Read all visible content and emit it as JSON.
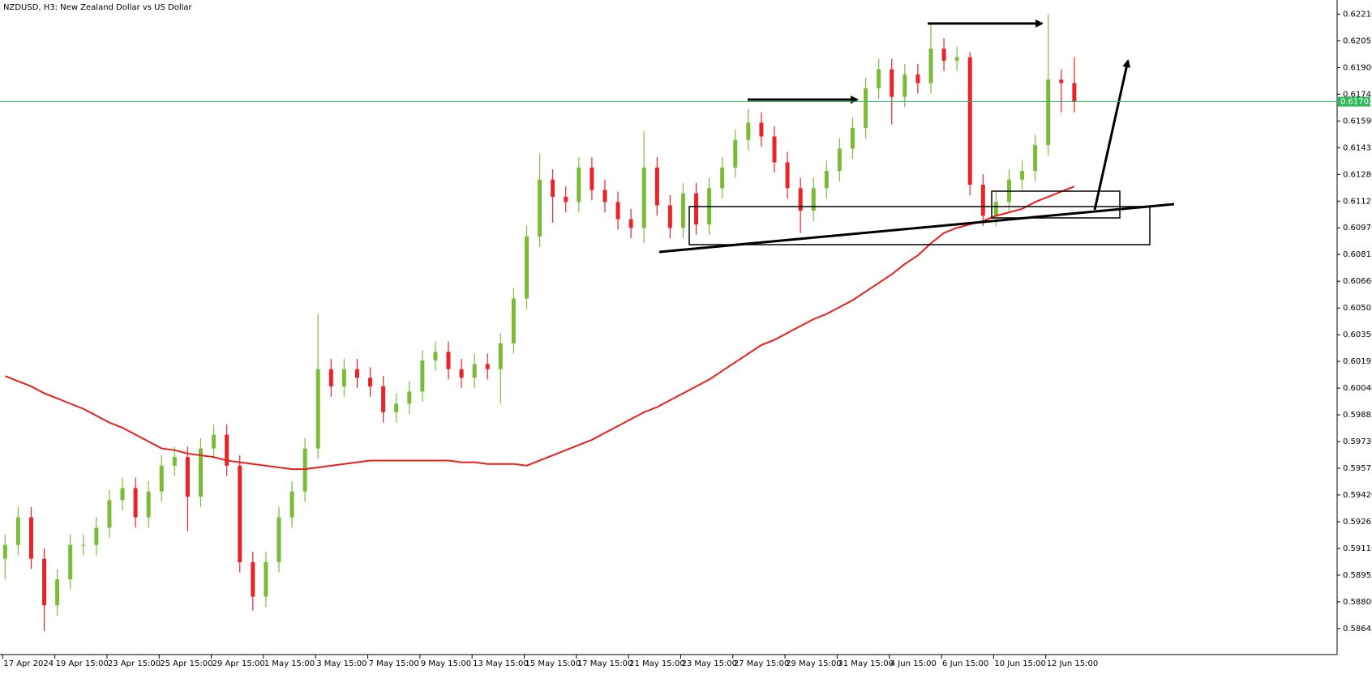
{
  "chart_data": {
    "type": "candlestick",
    "title": "NZDUSD, H3:  New Zealand Dollar vs US Dollar",
    "categories": [
      "17 Apr 2024",
      null,
      null,
      null,
      "19 Apr 15:00",
      null,
      null,
      null,
      "23 Apr 15:00",
      null,
      null,
      null,
      "25 Apr 15:00",
      null,
      null,
      null,
      "29 Apr 15:00",
      null,
      null,
      null,
      "1 May 15:00",
      null,
      null,
      null,
      "3 May 15:00",
      null,
      null,
      null,
      "7 May 15:00",
      null,
      null,
      null,
      "9 May 15:00",
      null,
      null,
      null,
      "13 May 15:00",
      null,
      null,
      null,
      "15 May 15:00",
      null,
      null,
      null,
      "17 May 15:00",
      null,
      null,
      null,
      "21 May 15:00",
      null,
      null,
      null,
      "23 May 15:00",
      null,
      null,
      null,
      "27 May 15:00",
      null,
      null,
      null,
      "29 May 15:00",
      null,
      null,
      null,
      "31 May 15:00",
      null,
      null,
      null,
      "4 Jun 15:00",
      null,
      null,
      null,
      "6 Jun 15:00",
      null,
      null,
      null,
      "10 Jun 15:00",
      null,
      null,
      null,
      "12 Jun 15:00",
      null,
      null
    ],
    "open": [
      0.5905,
      0.5913,
      0.5929,
      0.5905,
      0.5878,
      0.5893,
      0.5913,
      0.5913,
      0.5923,
      0.5939,
      0.5946,
      0.5929,
      0.5944,
      0.5959,
      0.5964,
      0.5941,
      0.5969,
      0.5977,
      0.5959,
      0.5903,
      0.5883,
      0.5903,
      0.5929,
      0.5944,
      0.5969,
      0.6015,
      0.6005,
      0.6015,
      0.601,
      0.6005,
      0.599,
      0.5995,
      0.6002,
      0.602,
      0.6025,
      0.6015,
      0.601,
      0.6018,
      0.6015,
      0.603,
      0.6056,
      0.6092,
      0.6125,
      0.6115,
      0.6112,
      0.6132,
      0.6119,
      0.6112,
      0.6102,
      0.6097,
      0.6132,
      0.611,
      0.6097,
      0.6117,
      0.6099,
      0.612,
      0.6132,
      0.6148,
      0.6158,
      0.615,
      0.6135,
      0.612,
      0.6107,
      0.612,
      0.613,
      0.6143,
      0.6155,
      0.6178,
      0.6189,
      0.6173,
      0.6186,
      0.6181,
      0.6201,
      0.6194,
      0.6196,
      0.6122,
      0.6104,
      0.6112,
      0.6125,
      0.613,
      0.6145,
      0.6183,
      0.6181
    ],
    "high": [
      0.5919,
      0.5935,
      0.5935,
      0.5911,
      0.5899,
      0.5919,
      0.5919,
      0.5929,
      0.5945,
      0.5952,
      0.5952,
      0.595,
      0.5965,
      0.597,
      0.597,
      0.5975,
      0.5983,
      0.5983,
      0.5965,
      0.5909,
      0.5909,
      0.5935,
      0.595,
      0.5975,
      0.6047,
      0.6021,
      0.6021,
      0.6021,
      0.6016,
      0.6011,
      0.6001,
      0.6008,
      0.6026,
      0.6031,
      0.6031,
      0.6021,
      0.6024,
      0.6024,
      0.6036,
      0.6062,
      0.6098,
      0.614,
      0.6131,
      0.6121,
      0.6138,
      0.6138,
      0.6125,
      0.6118,
      0.6108,
      0.6153,
      0.6138,
      0.6116,
      0.6123,
      0.6123,
      0.6126,
      0.6138,
      0.6154,
      0.6166,
      0.6164,
      0.6156,
      0.6141,
      0.6126,
      0.6126,
      0.6136,
      0.6149,
      0.6161,
      0.6184,
      0.6195,
      0.6195,
      0.6192,
      0.6192,
      0.6216,
      0.6207,
      0.6202,
      0.6199,
      0.6128,
      0.6118,
      0.6131,
      0.6136,
      0.6151,
      0.6221,
      0.6189,
      0.6196
    ],
    "low": [
      0.5893,
      0.5907,
      0.5899,
      0.5863,
      0.5872,
      0.5887,
      0.5907,
      0.5907,
      0.5917,
      0.5933,
      0.5923,
      0.5923,
      0.5938,
      0.5953,
      0.5921,
      0.5935,
      0.5963,
      0.5953,
      0.5897,
      0.5875,
      0.5877,
      0.5897,
      0.5923,
      0.5938,
      0.5963,
      0.5999,
      0.5999,
      0.6004,
      0.5999,
      0.5984,
      0.5984,
      0.5989,
      0.5996,
      0.6014,
      0.6009,
      0.6004,
      0.6004,
      0.6009,
      0.5995,
      0.6024,
      0.605,
      0.6086,
      0.61,
      0.6106,
      0.6106,
      0.6113,
      0.6106,
      0.6096,
      0.6091,
      0.6088,
      0.6104,
      0.6091,
      0.6091,
      0.6093,
      0.6093,
      0.6114,
      0.6126,
      0.6142,
      0.6144,
      0.6129,
      0.6114,
      0.6094,
      0.6101,
      0.6114,
      0.6124,
      0.6137,
      0.6149,
      0.6172,
      0.6157,
      0.6167,
      0.6175,
      0.6175,
      0.6188,
      0.6188,
      0.6116,
      0.6098,
      0.6098,
      0.6106,
      0.6119,
      0.6124,
      0.6139,
      0.6164,
      0.6164
    ],
    "close": [
      0.5913,
      0.5929,
      0.5905,
      0.5878,
      0.5893,
      0.5913,
      0.5913,
      0.5923,
      0.5939,
      0.5946,
      0.5929,
      0.5944,
      0.5959,
      0.5964,
      0.5941,
      0.5969,
      0.5977,
      0.5959,
      0.5903,
      0.5883,
      0.5903,
      0.5929,
      0.5944,
      0.5969,
      0.6015,
      0.6005,
      0.6015,
      0.601,
      0.6005,
      0.599,
      0.5995,
      0.6002,
      0.602,
      0.6025,
      0.6015,
      0.601,
      0.6018,
      0.6015,
      0.603,
      0.6056,
      0.6092,
      0.6125,
      0.6115,
      0.6112,
      0.6132,
      0.6119,
      0.6112,
      0.6102,
      0.6097,
      0.6132,
      0.611,
      0.6097,
      0.6117,
      0.6099,
      0.612,
      0.6132,
      0.6148,
      0.6158,
      0.615,
      0.6135,
      0.612,
      0.6107,
      0.612,
      0.613,
      0.6143,
      0.6155,
      0.6178,
      0.6189,
      0.6173,
      0.6186,
      0.6181,
      0.6201,
      0.6194,
      0.6196,
      0.6122,
      0.6104,
      0.6112,
      0.6125,
      0.613,
      0.6145,
      0.6183,
      0.6181,
      0.617
    ],
    "up_color": "#7cbb3a",
    "down_color": "#e8232a",
    "ma": {
      "color": "#e8201c",
      "values": [
        0.6011,
        0.6008,
        0.6005,
        0.6001,
        0.5998,
        0.5995,
        0.5992,
        0.5988,
        0.5984,
        0.5981,
        0.5977,
        0.5973,
        0.5969,
        0.5968,
        0.5966,
        0.5965,
        0.5964,
        0.5962,
        0.5961,
        0.596,
        0.5959,
        0.5958,
        0.5957,
        0.5957,
        0.5958,
        0.5959,
        0.596,
        0.5961,
        0.5962,
        0.5962,
        0.5962,
        0.5962,
        0.5962,
        0.5962,
        0.5962,
        0.5961,
        0.5961,
        0.596,
        0.596,
        0.596,
        0.5959,
        0.5962,
        0.5965,
        0.5968,
        0.5971,
        0.5974,
        0.5978,
        0.5982,
        0.5986,
        0.599,
        0.5993,
        0.5997,
        0.6001,
        0.6005,
        0.6009,
        0.6014,
        0.6019,
        0.6024,
        0.6029,
        0.6032,
        0.6036,
        0.604,
        0.6044,
        0.6047,
        0.6051,
        0.6055,
        0.606,
        0.6065,
        0.607,
        0.6076,
        0.6081,
        0.6088,
        0.6094,
        0.6097,
        0.6099,
        0.6101,
        0.6104,
        0.6106,
        0.6108,
        0.6112,
        0.6115,
        0.6118,
        0.6121
      ]
    },
    "last_price": 0.61702,
    "last_price_color": "#2fb85a",
    "ylim": [
      0.58494,
      0.62292
    ],
    "yticks": [
      {
        "value": 0.6221,
        "label": "0.62210"
      },
      0.62055,
      {
        "value": 0.619,
        "label": "0.61900"
      },
      0.61745,
      {
        "value": 0.6159,
        "label": "0.61590"
      },
      0.61435,
      {
        "value": 0.6128,
        "label": "0.61280"
      },
      0.61125,
      {
        "value": 0.6097,
        "label": "0.60970"
      },
      0.60815,
      {
        "value": 0.6066,
        "label": "0.60660"
      },
      0.60505,
      {
        "value": 0.6035,
        "label": "0.60350"
      },
      0.60195,
      {
        "value": 0.6004,
        "label": "0.60040"
      },
      0.59885,
      {
        "value": 0.5973,
        "label": "0.59730"
      },
      0.59575,
      {
        "value": 0.5942,
        "label": "0.59420"
      },
      0.59265,
      {
        "value": 0.5911,
        "label": "0.59110"
      },
      0.58955,
      {
        "value": 0.588,
        "label": "0.58800"
      },
      0.58645
    ]
  }
}
